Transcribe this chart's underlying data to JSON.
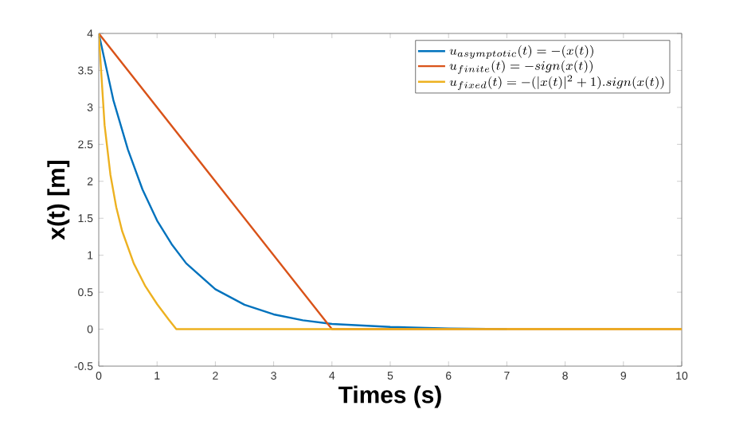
{
  "chart_data": {
    "type": "line",
    "xlabel": "Times (s)",
    "ylabel": "x(t) [m]",
    "xlim": [
      0,
      10
    ],
    "ylim": [
      -0.5,
      4
    ],
    "xticks": [
      0,
      1,
      2,
      3,
      4,
      5,
      6,
      7,
      8,
      9,
      10
    ],
    "yticks": [
      -0.5,
      0,
      0.5,
      1,
      1.5,
      2,
      2.5,
      3,
      3.5,
      4
    ],
    "grid": false,
    "legend": "top right",
    "marker": "none",
    "line_style": "solid",
    "series": [
      {
        "name": "u_{asymptotic}(t) = -(x(t))",
        "color": "#0072bd",
        "x": [
          0,
          0.25,
          0.5,
          0.75,
          1,
          1.25,
          1.5,
          2,
          2.5,
          3,
          3.5,
          4,
          5,
          6,
          7
        ],
        "values": [
          4,
          3.1,
          2.43,
          1.89,
          1.47,
          1.15,
          0.89,
          0.54,
          0.33,
          0.2,
          0.12,
          0.07,
          0.03,
          0.01,
          0
        ]
      },
      {
        "name": "u_{finite}(t) = -sign(x(t))",
        "color": "#d95319",
        "x": [
          0,
          4,
          10
        ],
        "values": [
          4,
          0,
          0
        ]
      },
      {
        "name": "u_{fixed}(t) = -(|x(t)|^{2} + 1).sign(x(t))",
        "color": "#edb120",
        "x": [
          0,
          0.1,
          0.2,
          0.3,
          0.4,
          0.6,
          0.8,
          1.0,
          1.2,
          1.33,
          10
        ],
        "values": [
          4,
          2.76,
          2.09,
          1.65,
          1.33,
          0.89,
          0.58,
          0.34,
          0.13,
          0,
          0
        ]
      }
    ]
  }
}
